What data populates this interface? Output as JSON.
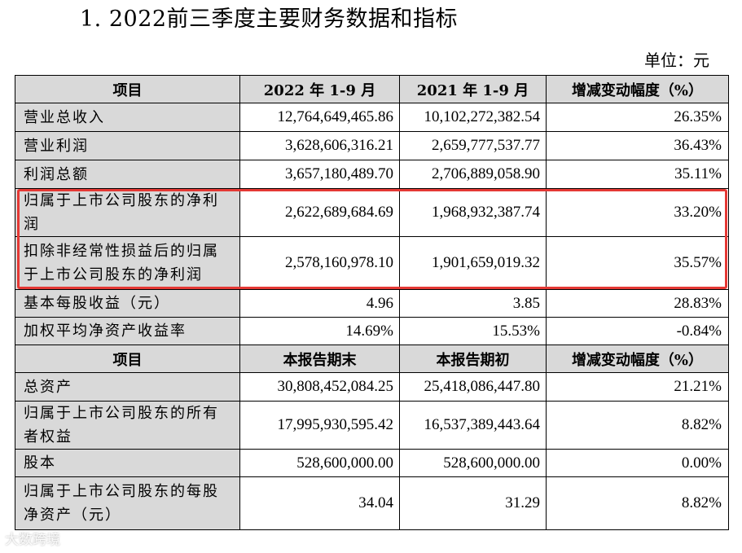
{
  "title": "1. 2022前三季度主要财务数据和指标",
  "unit": "单位：元",
  "header1": [
    "项目",
    "2022 年 1-9 月",
    "2021 年 1-9 月",
    "增减变动幅度（%）"
  ],
  "rows1": [
    {
      "label": "营业总收入",
      "a": "12,764,649,465.86",
      "b": "10,102,272,382.54",
      "c": "26.35%"
    },
    {
      "label": "营业利润",
      "a": "3,628,606,316.21",
      "b": "2,659,777,537.77",
      "c": "36.43%"
    },
    {
      "label": "利润总额",
      "a": "3,657,180,489.70",
      "b": "2,706,889,058.90",
      "c": "35.11%"
    },
    {
      "label": "归属于上市公司股东的净利润",
      "a": "2,622,689,684.69",
      "b": "1,968,932,387.74",
      "c": "33.20%"
    },
    {
      "label": "扣除非经常性损益后的归属于上市公司股东的净利润",
      "a": "2,578,160,978.10",
      "b": "1,901,659,019.32",
      "c": "35.57%"
    },
    {
      "label": "基本每股收益（元）",
      "a": "4.96",
      "b": "3.85",
      "c": "28.83%"
    },
    {
      "label": "加权平均净资产收益率",
      "a": "14.69%",
      "b": "15.53%",
      "c": "-0.84%"
    }
  ],
  "header2": [
    "项目",
    "本报告期末",
    "本报告期初",
    "增减变动幅度（%）"
  ],
  "rows2": [
    {
      "label": "总资产",
      "a": "30,808,452,084.25",
      "b": "25,418,086,447.80",
      "c": "21.21%"
    },
    {
      "label": "归属于上市公司股东的所有者权益",
      "a": "17,995,930,595.42",
      "b": "16,537,389,443.64",
      "c": "8.82%"
    },
    {
      "label": "股本",
      "a": "528,600,000.00",
      "b": "528,600,000.00",
      "c": "0.00%"
    },
    {
      "label": "归属于上市公司股东的每股净资产（元）",
      "a": "34.04",
      "b": "31.29",
      "c": "8.82%"
    }
  ],
  "watermark": "大数跨境",
  "colors": {
    "highlight": "#e53935",
    "header_bg": "#d9d9d9"
  }
}
